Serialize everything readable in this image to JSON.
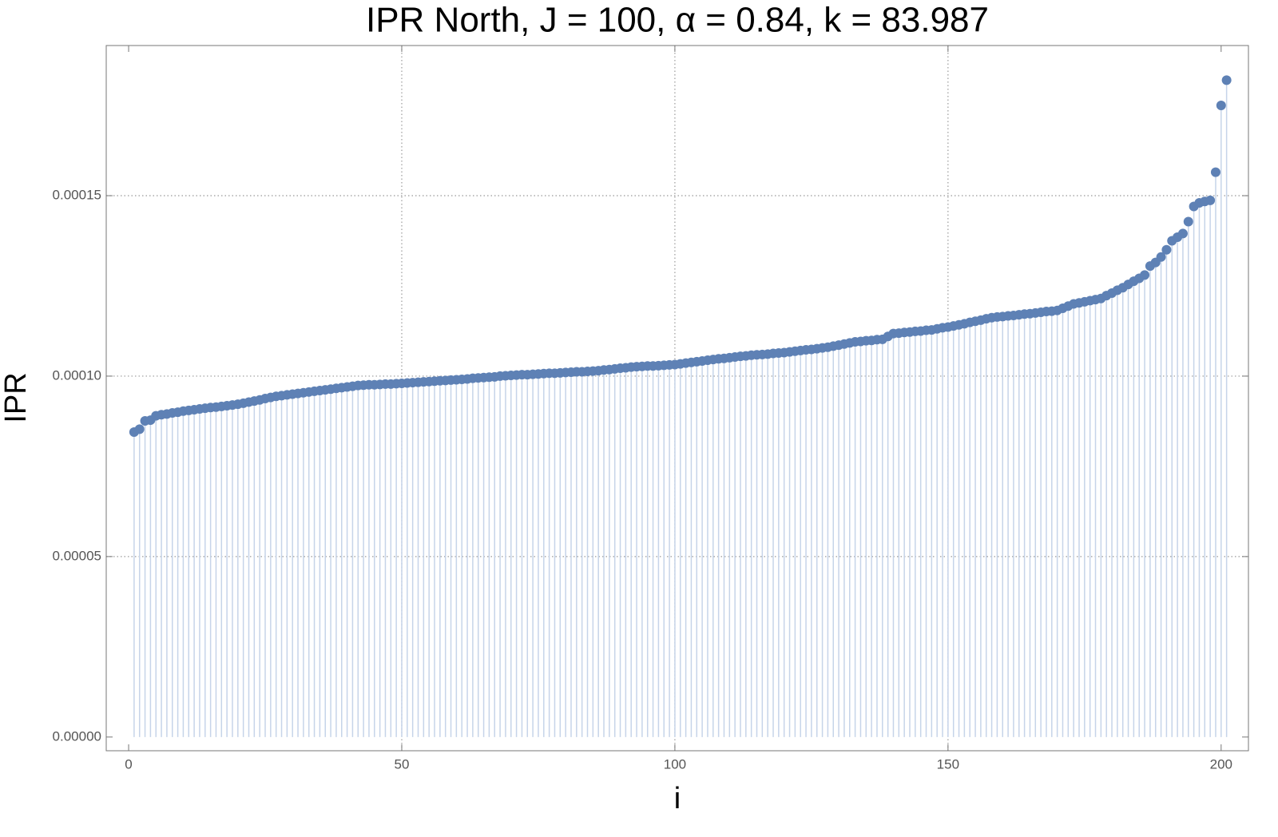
{
  "chart_data": {
    "type": "stem",
    "title": "IPR North, J = 100, α = 0.84, k = 83.987",
    "x_label": "i",
    "y_label": "IPR",
    "color": "#5e81b5",
    "stem_color": "#c6d4e9",
    "grid": true,
    "xlim": [
      -4.1,
      205
    ],
    "ylim": [
      -3.8e-06,
      0.0001916
    ],
    "xticks": [
      0,
      50,
      100,
      150,
      200
    ],
    "yticks": [
      {
        "value": 0,
        "label": "0.00000"
      },
      5e-05,
      {
        "value": 0.0001,
        "label": "0.00010"
      },
      0.00015
    ],
    "x": [
      1,
      2,
      3,
      4,
      5,
      6,
      7,
      8,
      9,
      10,
      11,
      12,
      13,
      14,
      15,
      16,
      17,
      18,
      19,
      20,
      21,
      22,
      23,
      24,
      25,
      26,
      27,
      28,
      29,
      30,
      31,
      32,
      33,
      34,
      35,
      36,
      37,
      38,
      39,
      40,
      41,
      42,
      43,
      44,
      45,
      46,
      47,
      48,
      49,
      50,
      51,
      52,
      53,
      54,
      55,
      56,
      57,
      58,
      59,
      60,
      61,
      62,
      63,
      64,
      65,
      66,
      67,
      68,
      69,
      70,
      71,
      72,
      73,
      74,
      75,
      76,
      77,
      78,
      79,
      80,
      81,
      82,
      83,
      84,
      85,
      86,
      87,
      88,
      89,
      90,
      91,
      92,
      93,
      94,
      95,
      96,
      97,
      98,
      99,
      100,
      101,
      102,
      103,
      104,
      105,
      106,
      107,
      108,
      109,
      110,
      111,
      112,
      113,
      114,
      115,
      116,
      117,
      118,
      119,
      120,
      121,
      122,
      123,
      124,
      125,
      126,
      127,
      128,
      129,
      130,
      131,
      132,
      133,
      134,
      135,
      136,
      137,
      138,
      139,
      140,
      141,
      142,
      143,
      144,
      145,
      146,
      147,
      148,
      149,
      150,
      151,
      152,
      153,
      154,
      155,
      156,
      157,
      158,
      159,
      160,
      161,
      162,
      163,
      164,
      165,
      166,
      167,
      168,
      169,
      170,
      171,
      172,
      173,
      174,
      175,
      176,
      177,
      178,
      179,
      180,
      181,
      182,
      183,
      184,
      185,
      186,
      187,
      188,
      189,
      190,
      191,
      192,
      193,
      194,
      195,
      196,
      197,
      198,
      199,
      200,
      201
    ],
    "values": [
      8.45e-05,
      8.53e-05,
      8.76e-05,
      8.78e-05,
      8.9e-05,
      8.93e-05,
      8.95e-05,
      8.98e-05,
      9e-05,
      9.03e-05,
      9.05e-05,
      9.07e-05,
      9.09e-05,
      9.11e-05,
      9.13e-05,
      9.14e-05,
      9.16e-05,
      9.18e-05,
      9.2e-05,
      9.22e-05,
      9.25e-05,
      9.28e-05,
      9.31e-05,
      9.34e-05,
      9.38e-05,
      9.41e-05,
      9.44e-05,
      9.46e-05,
      9.48e-05,
      9.5e-05,
      9.52e-05,
      9.54e-05,
      9.56e-05,
      9.58e-05,
      9.6e-05,
      9.62e-05,
      9.64e-05,
      9.66e-05,
      9.68e-05,
      9.7e-05,
      9.72e-05,
      9.74e-05,
      9.75e-05,
      9.76e-05,
      9.76e-05,
      9.77e-05,
      9.78e-05,
      9.78e-05,
      9.79e-05,
      9.8e-05,
      9.81e-05,
      9.82e-05,
      9.83e-05,
      9.84e-05,
      9.85e-05,
      9.86e-05,
      9.87e-05,
      9.88e-05,
      9.89e-05,
      9.9e-05,
      9.91e-05,
      9.92e-05,
      9.94e-05,
      9.95e-05,
      9.96e-05,
      9.97e-05,
      9.98e-05,
      0.0001,
      0.0001001,
      0.0001002,
      0.0001003,
      0.0001004,
      0.0001004,
      0.0001005,
      0.0001006,
      0.0001007,
      0.0001008,
      0.0001008,
      0.0001009,
      0.000101,
      0.0001011,
      0.0001012,
      0.0001012,
      0.0001013,
      0.0001014,
      0.0001015,
      0.0001017,
      0.0001018,
      0.000102,
      0.0001022,
      0.0001023,
      0.0001025,
      0.0001026,
      0.0001027,
      0.0001028,
      0.0001028,
      0.0001029,
      0.000103,
      0.0001031,
      0.0001032,
      0.0001034,
      0.0001036,
      0.0001038,
      0.000104,
      0.0001042,
      0.0001044,
      0.0001046,
      0.0001048,
      0.0001049,
      0.0001051,
      0.0001053,
      0.0001055,
      0.0001056,
      0.0001058,
      0.0001059,
      0.000106,
      0.0001061,
      0.0001063,
      0.0001064,
      0.0001065,
      0.0001067,
      0.0001069,
      0.0001071,
      0.0001073,
      0.0001074,
      0.0001076,
      0.0001078,
      0.000108,
      0.0001083,
      0.0001086,
      0.0001089,
      0.0001092,
      0.0001095,
      0.0001096,
      0.0001098,
      0.0001099,
      0.0001101,
      0.0001102,
      0.000111,
      0.0001118,
      0.0001119,
      0.0001121,
      0.0001122,
      0.0001124,
      0.0001125,
      0.0001127,
      0.0001128,
      0.0001131,
      0.0001134,
      0.0001136,
      0.0001139,
      0.0001142,
      0.0001145,
      0.0001149,
      0.0001152,
      0.0001155,
      0.0001159,
      0.0001162,
      0.0001164,
      0.0001165,
      0.0001167,
      0.0001168,
      0.000117,
      0.0001172,
      0.0001173,
      0.0001175,
      0.0001177,
      0.0001179,
      0.000118,
      0.0001182,
      0.0001188,
      0.0001194,
      0.00012,
      0.0001203,
      0.0001206,
      0.0001209,
      0.0001212,
      0.0001215,
      0.0001223,
      0.000123,
      0.0001238,
      0.0001245,
      0.0001254,
      0.0001263,
      0.0001271,
      0.000128,
      0.0001305,
      0.0001315,
      0.000133,
      0.000135,
      0.0001375,
      0.0001385,
      0.0001395,
      0.0001428,
      0.000147,
      0.000148,
      0.0001484,
      0.0001487,
      0.0001565,
      0.000175,
      0.000182
    ]
  }
}
